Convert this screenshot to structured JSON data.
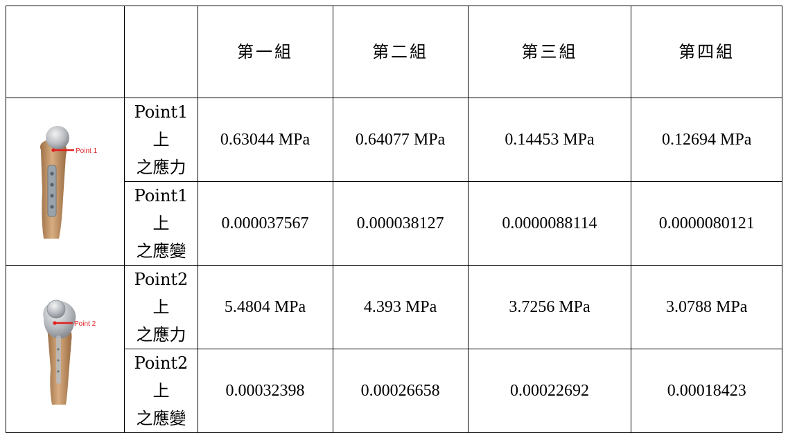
{
  "header": {
    "columns": [
      "第一組",
      "第二組",
      "第三組",
      "第四組"
    ]
  },
  "rows": [
    {
      "label_line1": "Point1 上",
      "label_line2": "之應力",
      "values": [
        "0.63044 MPa",
        "0.64077 MPa",
        "0.14453 MPa",
        "0.12694 MPa"
      ]
    },
    {
      "label_line1": "Point1 上",
      "label_line2": "之應變",
      "values": [
        "0.000037567",
        "0.000038127",
        "0.0000088114",
        "0.0000080121"
      ]
    },
    {
      "label_line1": "Point2 上",
      "label_line2": "之應力",
      "values": [
        "5.4804 MPa",
        "4.393 MPa",
        "3.7256 MPa",
        "3.0788 MPa"
      ]
    },
    {
      "label_line1": "Point2 上",
      "label_line2": "之應變",
      "values": [
        "0.00032398",
        "0.00026658",
        "0.00022692",
        "0.00018423"
      ]
    }
  ],
  "images": [
    {
      "annotation": "Point 1",
      "icon": "femur-implant-point1-image"
    },
    {
      "annotation": "Point 2",
      "icon": "femur-implant-point2-image"
    }
  ],
  "colors": {
    "bone": "#c79a6e",
    "metal": "#a9adb3",
    "marker": "#e02020"
  }
}
